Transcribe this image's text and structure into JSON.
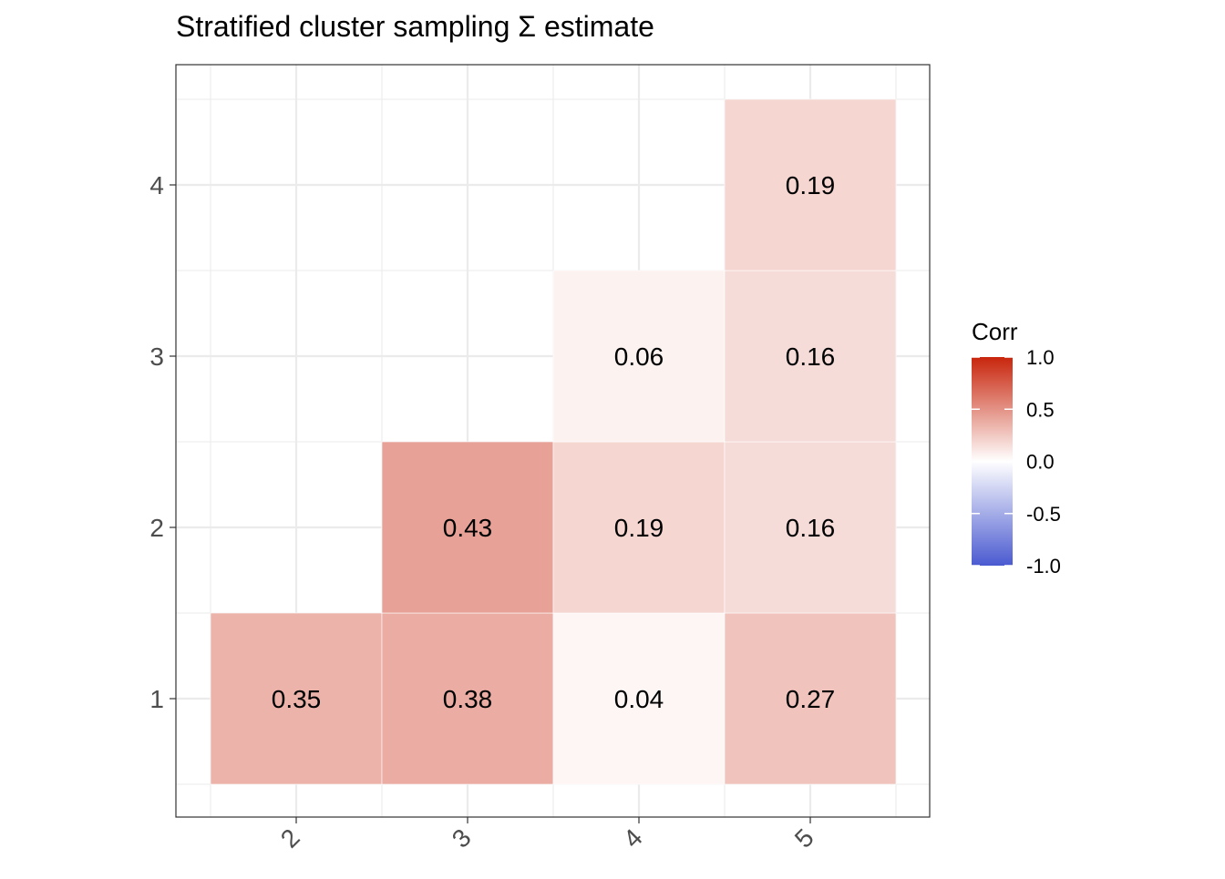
{
  "chart_data": {
    "type": "heatmap",
    "title": "Stratified cluster sampling Σ estimate",
    "x_categories": [
      "2",
      "3",
      "4",
      "5"
    ],
    "y_categories": [
      "1",
      "2",
      "3",
      "4"
    ],
    "cells": [
      {
        "x": "2",
        "y": "1",
        "value": 0.35,
        "label": "0.35"
      },
      {
        "x": "3",
        "y": "1",
        "value": 0.38,
        "label": "0.38"
      },
      {
        "x": "4",
        "y": "1",
        "value": 0.04,
        "label": "0.04"
      },
      {
        "x": "5",
        "y": "1",
        "value": 0.27,
        "label": "0.27"
      },
      {
        "x": "3",
        "y": "2",
        "value": 0.43,
        "label": "0.43"
      },
      {
        "x": "4",
        "y": "2",
        "value": 0.19,
        "label": "0.19"
      },
      {
        "x": "5",
        "y": "2",
        "value": 0.16,
        "label": "0.16"
      },
      {
        "x": "4",
        "y": "3",
        "value": 0.06,
        "label": "0.06"
      },
      {
        "x": "5",
        "y": "3",
        "value": 0.16,
        "label": "0.16"
      },
      {
        "x": "5",
        "y": "4",
        "value": 0.19,
        "label": "0.19"
      }
    ],
    "legend": {
      "title": "Corr",
      "placement": "right",
      "min": -1.0,
      "max": 1.0,
      "ticks": [
        1.0,
        0.5,
        0.0,
        -0.5,
        -1.0
      ],
      "tick_labels": [
        "1.0",
        "0.5",
        "0.0",
        "-0.5",
        "-1.0"
      ],
      "colors": {
        "low": "#4a5ad0",
        "mid": "#ffffff",
        "high": "#c8250c"
      }
    },
    "x_tick_rotation_deg": 45,
    "grid": true
  }
}
